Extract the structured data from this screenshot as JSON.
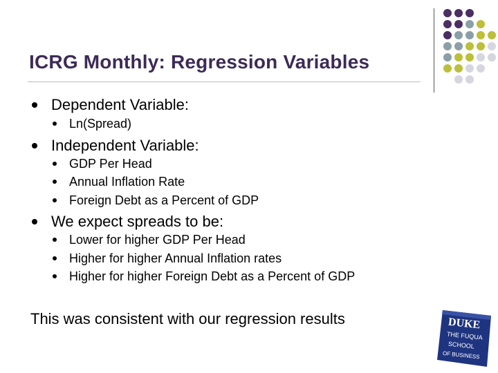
{
  "slide": {
    "title": "ICRG Monthly: Regression Variables",
    "bullets": [
      {
        "text": "Dependent Variable:",
        "sub": [
          "Ln(Spread)"
        ]
      },
      {
        "text": "Independent Variable:",
        "sub": [
          "GDP Per Head",
          "Annual Inflation Rate",
          "Foreign Debt as a Percent of GDP"
        ]
      },
      {
        "text": "We expect spreads to be:",
        "sub": [
          "Lower for higher GDP Per Head",
          "Higher for higher Annual Inflation rates",
          "Higher for higher Foreign Debt as a Percent of GDP"
        ]
      }
    ],
    "conclusion": "This was consistent with our regression results"
  },
  "logo": {
    "lines": [
      "DUKE",
      "THE FUQUA",
      "SCHOOL",
      "OF BUSINESS"
    ]
  },
  "colors": {
    "title": "#3d2a58",
    "dot_purple": "#4b2e63",
    "dot_gray": "#8aa0a6",
    "dot_olive": "#bcbf3a",
    "dot_light": "#d6d6e0",
    "logo_blue": "#243a8a"
  }
}
